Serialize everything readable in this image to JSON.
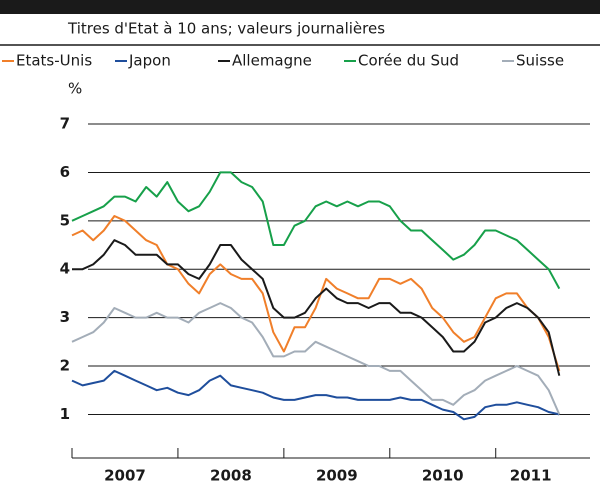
{
  "chart_data": {
    "type": "line",
    "subtitle": "Titres d'Etat à 10 ans; valeurs journalières",
    "y_label": "%",
    "x": [
      2007.0,
      2007.1,
      2007.2,
      2007.3,
      2007.4,
      2007.5,
      2007.6,
      2007.7,
      2007.8,
      2007.9,
      2008.0,
      2008.1,
      2008.2,
      2008.3,
      2008.4,
      2008.5,
      2008.6,
      2008.7,
      2008.8,
      2008.9,
      2009.0,
      2009.1,
      2009.2,
      2009.3,
      2009.4,
      2009.5,
      2009.6,
      2009.7,
      2009.8,
      2009.9,
      2010.0,
      2010.1,
      2010.2,
      2010.3,
      2010.4,
      2010.5,
      2010.6,
      2010.7,
      2010.8,
      2010.9,
      2011.0,
      2011.1,
      2011.2,
      2011.3,
      2011.4,
      2011.5,
      2011.6
    ],
    "xlim": [
      2007,
      2011.89
    ],
    "xticks": [
      {
        "value": 2007.5,
        "label": "2007"
      },
      {
        "value": 2008.5,
        "label": "2008"
      },
      {
        "value": 2009.5,
        "label": "2009"
      },
      {
        "value": 2010.5,
        "label": "2010"
      },
      {
        "value": 2011.33,
        "label": "2011"
      }
    ],
    "ylim": [
      0.1,
      7.6
    ],
    "yticks": [
      1,
      2,
      3,
      4,
      5,
      6,
      7
    ],
    "grid": true,
    "series": [
      {
        "name": "Etats-Unis",
        "color": "#f07f2a",
        "values": [
          4.7,
          4.8,
          4.6,
          4.8,
          5.1,
          5.0,
          4.8,
          4.6,
          4.5,
          4.1,
          4.0,
          3.7,
          3.5,
          3.9,
          4.1,
          3.9,
          3.8,
          3.8,
          3.5,
          2.7,
          2.3,
          2.8,
          2.8,
          3.2,
          3.8,
          3.6,
          3.5,
          3.4,
          3.4,
          3.8,
          3.8,
          3.7,
          3.8,
          3.6,
          3.2,
          3.0,
          2.7,
          2.5,
          2.6,
          3.0,
          3.4,
          3.5,
          3.5,
          3.2,
          3.0,
          2.6,
          1.9
        ]
      },
      {
        "name": "Japon",
        "color": "#1f4e9c",
        "values": [
          1.7,
          1.6,
          1.65,
          1.7,
          1.9,
          1.8,
          1.7,
          1.6,
          1.5,
          1.55,
          1.45,
          1.4,
          1.5,
          1.7,
          1.8,
          1.6,
          1.55,
          1.5,
          1.45,
          1.35,
          1.3,
          1.3,
          1.35,
          1.4,
          1.4,
          1.35,
          1.35,
          1.3,
          1.3,
          1.3,
          1.3,
          1.35,
          1.3,
          1.3,
          1.2,
          1.1,
          1.05,
          0.9,
          0.95,
          1.15,
          1.2,
          1.2,
          1.25,
          1.2,
          1.15,
          1.05,
          1.0
        ]
      },
      {
        "name": "Allemagne",
        "color": "#1a1a1a",
        "values": [
          4.0,
          4.0,
          4.1,
          4.3,
          4.6,
          4.5,
          4.3,
          4.3,
          4.3,
          4.1,
          4.1,
          3.9,
          3.8,
          4.1,
          4.5,
          4.5,
          4.2,
          4.0,
          3.8,
          3.2,
          3.0,
          3.0,
          3.1,
          3.4,
          3.6,
          3.4,
          3.3,
          3.3,
          3.2,
          3.3,
          3.3,
          3.1,
          3.1,
          3.0,
          2.8,
          2.6,
          2.3,
          2.3,
          2.5,
          2.9,
          3.0,
          3.2,
          3.3,
          3.2,
          3.0,
          2.7,
          1.8
        ]
      },
      {
        "name": "Corée du Sud",
        "color": "#17a04a",
        "values": [
          5.0,
          5.1,
          5.2,
          5.3,
          5.5,
          5.5,
          5.4,
          5.7,
          5.5,
          5.8,
          5.4,
          5.2,
          5.3,
          5.6,
          6.0,
          6.0,
          5.8,
          5.7,
          5.4,
          4.5,
          4.5,
          4.9,
          5.0,
          5.3,
          5.4,
          5.3,
          5.4,
          5.3,
          5.4,
          5.4,
          5.3,
          5.0,
          4.8,
          4.8,
          4.6,
          4.4,
          4.2,
          4.3,
          4.5,
          4.8,
          4.8,
          4.7,
          4.6,
          4.4,
          4.2,
          4.0,
          3.6
        ]
      },
      {
        "name": "Suisse",
        "color": "#a3adb8",
        "values": [
          2.5,
          2.6,
          2.7,
          2.9,
          3.2,
          3.1,
          3.0,
          3.0,
          3.1,
          3.0,
          3.0,
          2.9,
          3.1,
          3.2,
          3.3,
          3.2,
          3.0,
          2.9,
          2.6,
          2.2,
          2.2,
          2.3,
          2.3,
          2.5,
          2.4,
          2.3,
          2.2,
          2.1,
          2.0,
          2.0,
          1.9,
          1.9,
          1.7,
          1.5,
          1.3,
          1.3,
          1.2,
          1.4,
          1.5,
          1.7,
          1.8,
          1.9,
          2.0,
          1.9,
          1.8,
          1.5,
          1.0
        ]
      }
    ]
  }
}
